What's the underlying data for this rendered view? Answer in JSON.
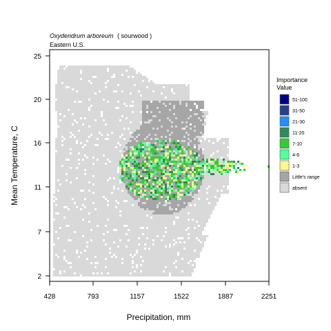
{
  "chart_data": {
    "type": "heatmap",
    "title_species": "Oxydendrum arboreum",
    "title_common": "( sourwood )",
    "subtitle": "Eastern U.S.",
    "xlabel": "Precipitation, mm",
    "ylabel": "Mean Temperature, C",
    "x_ticks": [
      "428",
      "793",
      "1157",
      "1522",
      "1887",
      "2251"
    ],
    "y_ticks": [
      "2",
      "7",
      "11",
      "16",
      "20",
      "25"
    ],
    "x_range": [
      428,
      2251
    ],
    "y_range": [
      2,
      25
    ],
    "legend": {
      "title_line1": "Importance",
      "title_line2": "Value",
      "placement": "right",
      "items": [
        {
          "label": "51-100",
          "color": "#00008b"
        },
        {
          "label": "31-50",
          "color": "#27408b"
        },
        {
          "label": "21-30",
          "color": "#1e90ff"
        },
        {
          "label": "11-20",
          "color": "#2e8b57"
        },
        {
          "label": "7-10",
          "color": "#32cd32"
        },
        {
          "label": "4-6",
          "color": "#54ff9f"
        },
        {
          "label": "1-3",
          "color": "#fff68f"
        },
        {
          "label": "Little's range",
          "color": "#a6a6a6"
        },
        {
          "label": "absent",
          "color": "#d9d9d9"
        }
      ]
    }
  }
}
